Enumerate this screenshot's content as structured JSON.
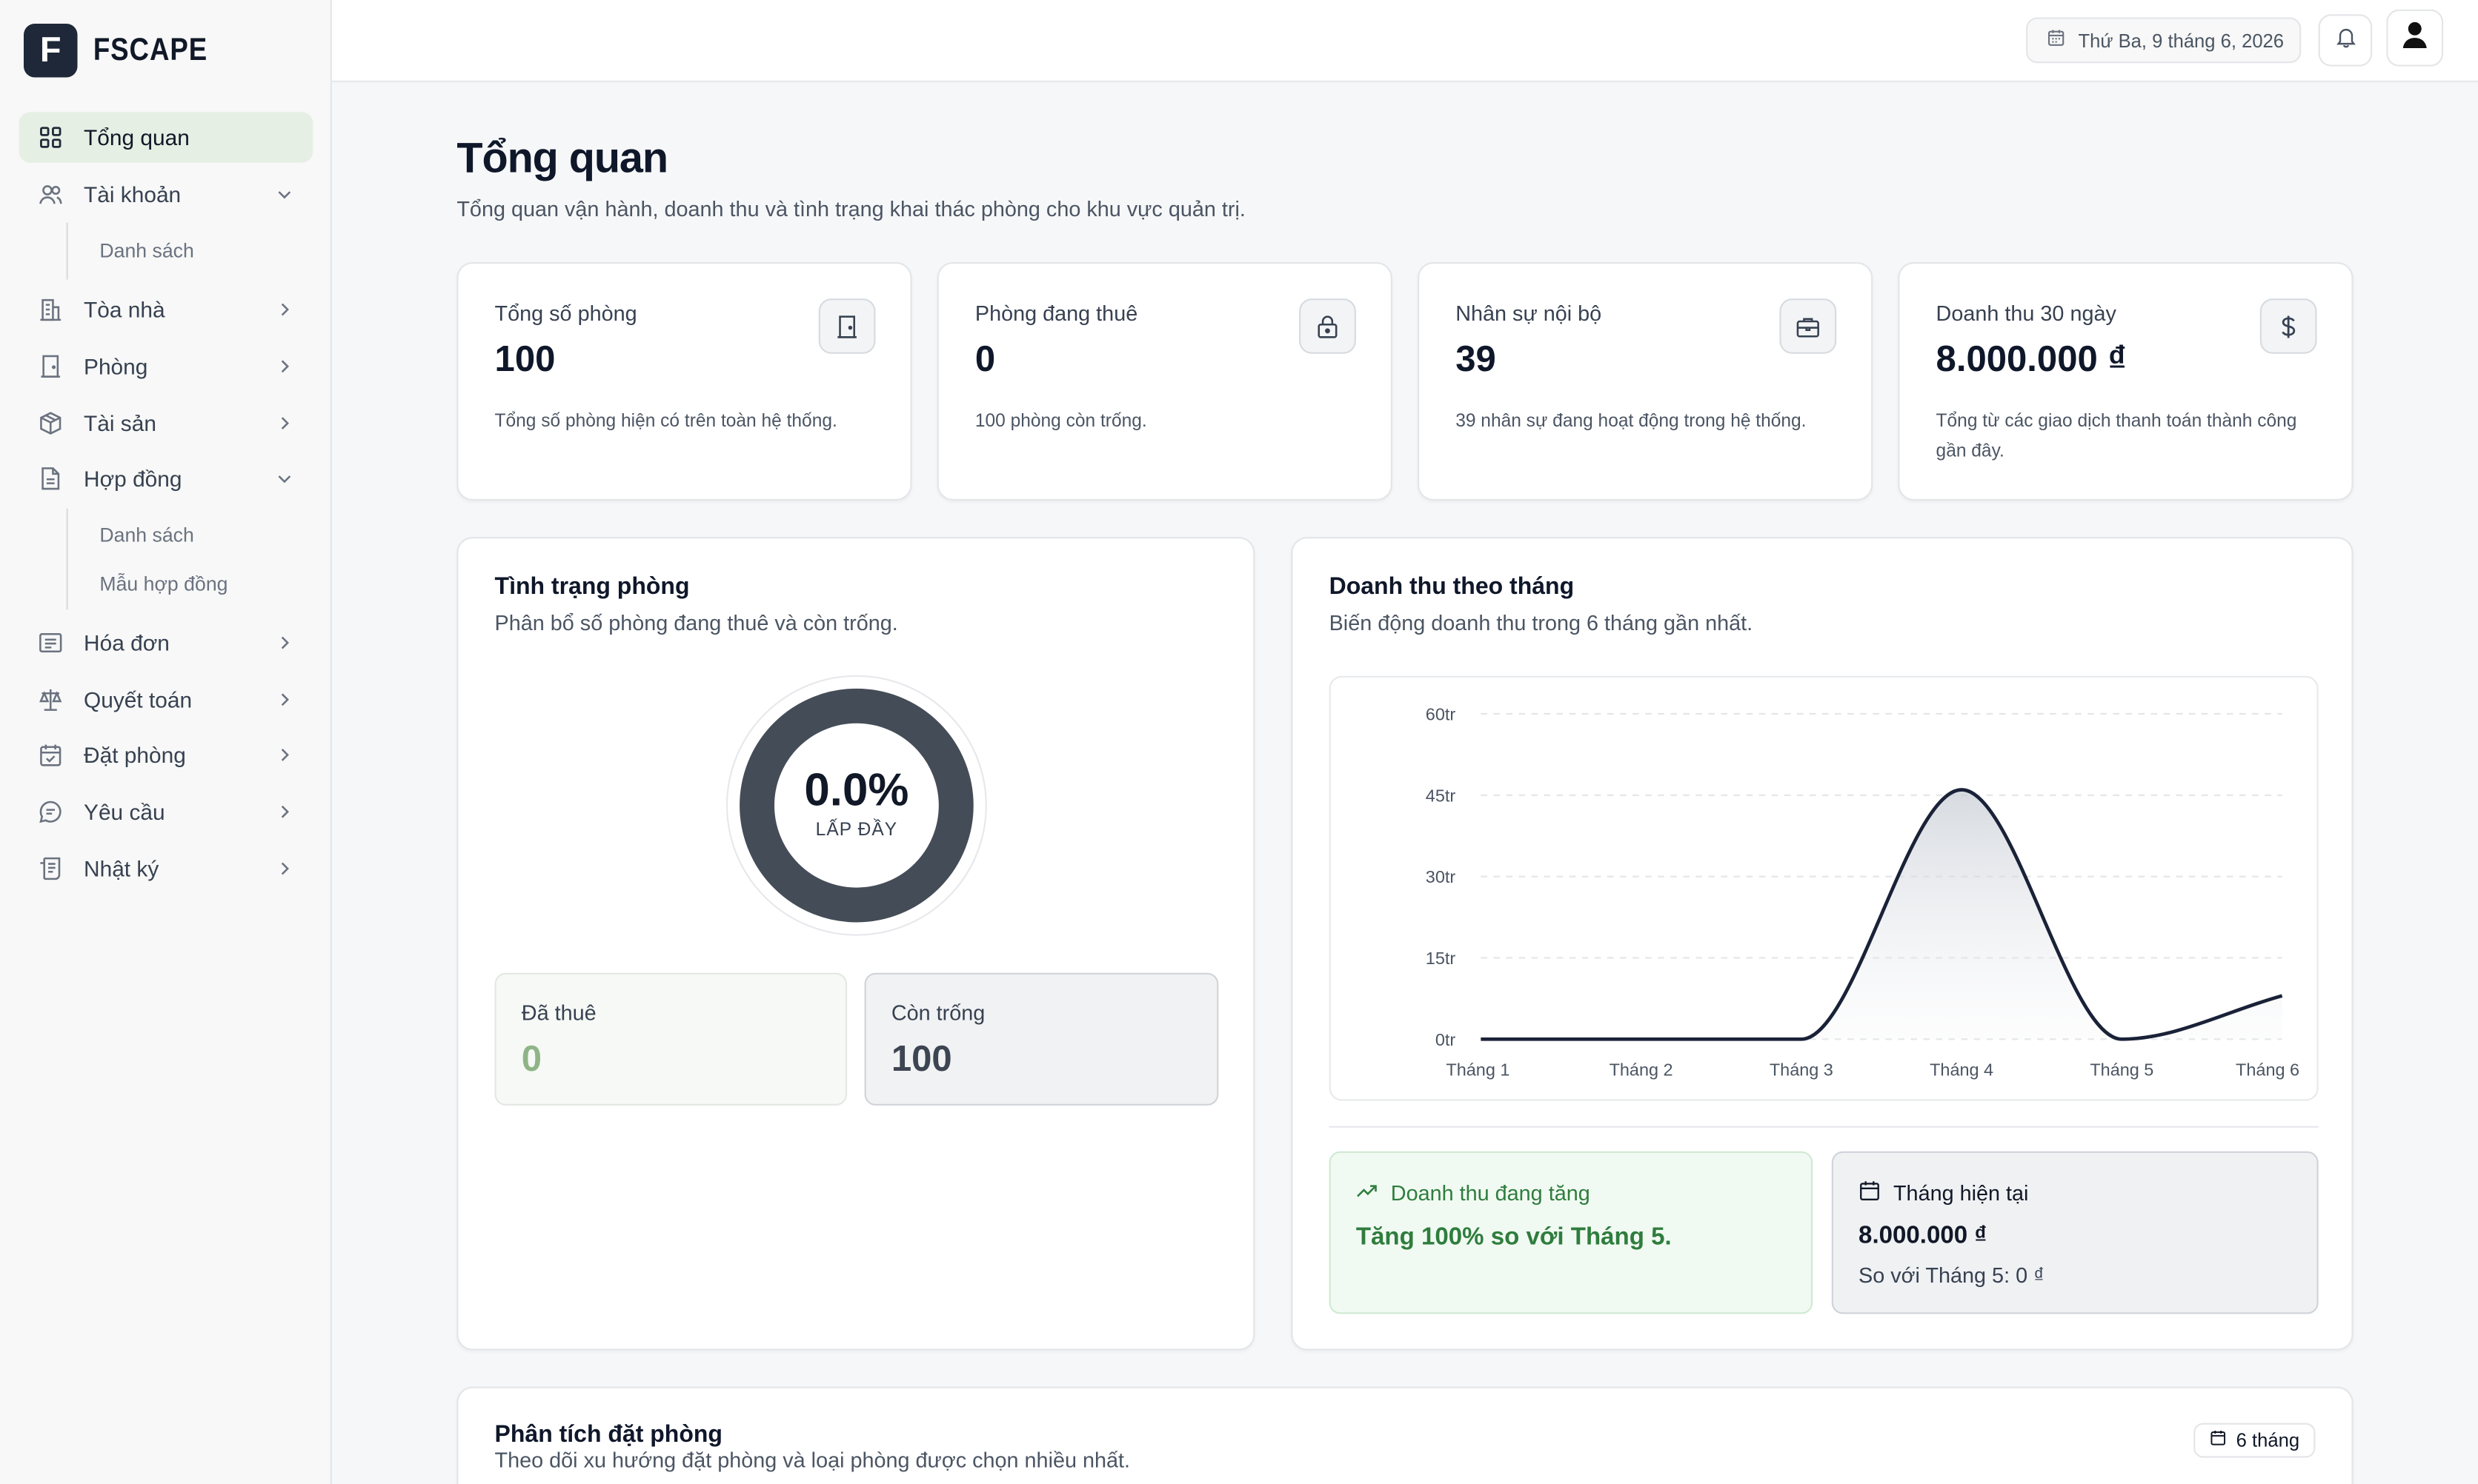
{
  "brand": {
    "logo_letter": "F",
    "name": "FSCAPE"
  },
  "sidebar": {
    "items": [
      {
        "label": "Tổng quan",
        "icon": "grid-icon"
      },
      {
        "label": "Tài khoản",
        "icon": "users-icon"
      },
      {
        "label": "Tòa nhà",
        "icon": "building-icon"
      },
      {
        "label": "Phòng",
        "icon": "door-icon"
      },
      {
        "label": "Tài sản",
        "icon": "package-icon"
      },
      {
        "label": "Hợp đồng",
        "icon": "document-icon"
      },
      {
        "label": "Hóa đơn",
        "icon": "receipt-icon"
      },
      {
        "label": "Quyết toán",
        "icon": "scale-icon"
      },
      {
        "label": "Đặt phòng",
        "icon": "calendar-check-icon"
      },
      {
        "label": "Yêu cầu",
        "icon": "chat-icon"
      },
      {
        "label": "Nhật ký",
        "icon": "log-icon"
      }
    ],
    "account_sub": [
      "Danh sách"
    ],
    "contract_sub": [
      "Danh sách",
      "Mẫu hợp đồng"
    ]
  },
  "topbar": {
    "date": "Thứ Ba, 9 tháng 6, 2026"
  },
  "header": {
    "title": "Tổng quan",
    "subtitle": "Tổng quan vận hành, doanh thu và tình trạng khai thác phòng cho khu vực quản trị."
  },
  "stats": [
    {
      "label": "Tổng số phòng",
      "value": "100",
      "desc": "Tổng số phòng hiện có trên toàn hệ thống.",
      "icon": "door-icon"
    },
    {
      "label": "Phòng đang thuê",
      "value": "0",
      "desc": "100 phòng còn trống.",
      "icon": "lock-icon"
    },
    {
      "label": "Nhân sự nội bộ",
      "value": "39",
      "desc": "39 nhân sự đang hoạt động trong hệ thống.",
      "icon": "briefcase-icon"
    },
    {
      "label": "Doanh thu 30 ngày",
      "value": "8.000.000 ₫",
      "desc": "Tổng từ các giao dịch thanh toán thành công gần đây.",
      "icon": "dollar-icon"
    }
  ],
  "room_status": {
    "title": "Tình trạng phòng",
    "subtitle": "Phân bổ số phòng đang thuê và còn trống.",
    "occupancy_pct": "0.0%",
    "occupancy_label": "LẤP ĐẦY",
    "rented_label": "Đã thuê",
    "rented_value": "0",
    "vacant_label": "Còn trống",
    "vacant_value": "100"
  },
  "revenue": {
    "title": "Doanh thu theo tháng",
    "subtitle": "Biến động doanh thu trong 6 tháng gần nhất.",
    "trend_title": "Doanh thu đang tăng",
    "trend_text": "Tăng 100% so với Tháng 5.",
    "current_title": "Tháng hiện tại",
    "current_value": "8.000.000 ₫",
    "current_compare": "So với Tháng 5: 0 ₫"
  },
  "chart_data": {
    "type": "area",
    "categories": [
      "Tháng 1",
      "Tháng 2",
      "Tháng 3",
      "Tháng 4",
      "Tháng 5",
      "Tháng 6"
    ],
    "series": [
      {
        "values": [
          0,
          0,
          0,
          46,
          0,
          8
        ]
      }
    ],
    "yticks": [
      "0tr",
      "15tr",
      "30tr",
      "45tr",
      "60tr"
    ],
    "ylim": [
      0,
      60
    ],
    "y_unit": "tr",
    "grid": true,
    "line_color": "#1a2238"
  },
  "booking": {
    "title": "Phân tích đặt phòng",
    "subtitle": "Theo dõi xu hướng đặt phòng và loại phòng được chọn nhiều nhất.",
    "range": "6 tháng"
  },
  "colors": {
    "accent_green": "#2f7d3e",
    "sidebar_active": "#e6efe4",
    "donut": "#444c57",
    "brand_dark": "#1e2838"
  }
}
